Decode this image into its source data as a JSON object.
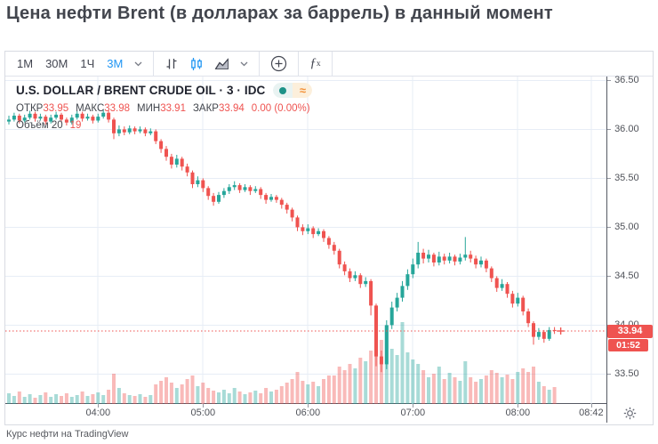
{
  "page": {
    "title": "Цена нефти Brent (в долларах за баррель) в данный момент",
    "caption": "Курс нефти на TradingView"
  },
  "colors": {
    "accent_blue": "#2196f3",
    "up": "#26a69a",
    "down": "#ef5350",
    "volume_up": "rgba(38,166,154,0.40)",
    "volume_down": "rgba(239,83,80,0.40)",
    "grid": "#e7edf6",
    "price_line": "#ef5350",
    "badge_bg": "#ef5350",
    "axis_text": "#4f5259",
    "icon_gray": "#434651"
  },
  "toolbar": {
    "intervals": [
      {
        "id": "1m",
        "label": "1М",
        "selected": false
      },
      {
        "id": "30m",
        "label": "30М",
        "selected": false
      },
      {
        "id": "1h",
        "label": "1Ч",
        "selected": false
      },
      {
        "id": "3m",
        "label": "3М",
        "selected": true
      }
    ]
  },
  "legend": {
    "symbol_title": "U.S. DOLLAR / BRENT CRUDE OIL · 3 · IDC",
    "ohlc": [
      {
        "label": "ОТКР",
        "value": "33.95"
      },
      {
        "label": "МАКС",
        "value": "33.98"
      },
      {
        "label": "МИН",
        "value": "33.91"
      },
      {
        "label": "ЗАКР",
        "value": "33.94"
      }
    ],
    "change": "0.00 (0.00%)",
    "volume_label": "Объём 20",
    "volume_value": "19"
  },
  "price_axis": {
    "labels": [
      "36.50",
      "36.00",
      "35.50",
      "35.00",
      "34.50",
      "34.00",
      "33.50"
    ],
    "current_price": "33.94",
    "countdown": "01:52"
  },
  "time_axis": {
    "labels": [
      "04:00",
      "05:00",
      "06:00",
      "07:00",
      "08:00",
      "08:42"
    ]
  },
  "chart_data": {
    "type": "candlestick",
    "symbol": "U.S. DOLLAR / BRENT CRUDE OIL",
    "exchange": "IDC",
    "interval_minutes": 3,
    "first_candle_time": "03:09",
    "last_candle_time": "08:21",
    "current_price": 33.94,
    "volume_ma_period": 20,
    "last_volume": 19,
    "grid": true,
    "ylim": [
      33.2,
      36.54
    ],
    "yticks": [
      33.5,
      34.0,
      34.5,
      35.0,
      35.5,
      36.0,
      36.5
    ],
    "xticks": [
      "04:00",
      "05:00",
      "06:00",
      "07:00",
      "08:00",
      "08:42"
    ],
    "ohlc_format": [
      "open",
      "high",
      "low",
      "close",
      "volume"
    ],
    "candles": [
      [
        36.08,
        36.14,
        36.05,
        36.1,
        12
      ],
      [
        36.1,
        36.17,
        36.08,
        36.14,
        9
      ],
      [
        36.14,
        36.16,
        36.06,
        36.09,
        14
      ],
      [
        36.09,
        36.15,
        36.07,
        36.12,
        8
      ],
      [
        36.12,
        36.19,
        36.1,
        36.16,
        11
      ],
      [
        36.16,
        36.18,
        36.08,
        36.11,
        7
      ],
      [
        36.11,
        36.16,
        36.09,
        36.13,
        10
      ],
      [
        36.13,
        36.15,
        36.05,
        36.08,
        13
      ],
      [
        36.08,
        36.15,
        36.06,
        36.12,
        8
      ],
      [
        36.12,
        36.18,
        36.1,
        36.15,
        11
      ],
      [
        36.15,
        36.17,
        36.07,
        36.1,
        9
      ],
      [
        36.1,
        36.12,
        36.04,
        36.07,
        12
      ],
      [
        36.07,
        36.15,
        36.05,
        36.12,
        8
      ],
      [
        36.12,
        36.19,
        36.1,
        36.16,
        10
      ],
      [
        36.16,
        36.18,
        36.08,
        36.11,
        14
      ],
      [
        36.11,
        36.16,
        36.09,
        36.13,
        9
      ],
      [
        36.13,
        36.15,
        36.06,
        36.09,
        11
      ],
      [
        36.09,
        36.16,
        36.07,
        36.13,
        13
      ],
      [
        36.13,
        36.2,
        36.11,
        36.17,
        10
      ],
      [
        36.17,
        36.19,
        36.07,
        36.1,
        16
      ],
      [
        36.1,
        36.12,
        35.9,
        35.96,
        34
      ],
      [
        35.96,
        36.04,
        35.93,
        36.0,
        18
      ],
      [
        36.0,
        36.03,
        35.94,
        35.97,
        12
      ],
      [
        35.97,
        36.04,
        35.95,
        36.01,
        10
      ],
      [
        36.01,
        36.03,
        35.95,
        35.98,
        9
      ],
      [
        35.98,
        36.03,
        35.96,
        36.0,
        11
      ],
      [
        36.0,
        36.02,
        35.93,
        35.96,
        8
      ],
      [
        35.96,
        36.01,
        35.94,
        35.98,
        10
      ],
      [
        35.98,
        36.0,
        35.85,
        35.88,
        22
      ],
      [
        35.88,
        35.9,
        35.76,
        35.8,
        26
      ],
      [
        35.8,
        35.83,
        35.68,
        35.72,
        30
      ],
      [
        35.72,
        35.75,
        35.6,
        35.64,
        24
      ],
      [
        35.64,
        35.74,
        35.61,
        35.7,
        18
      ],
      [
        35.7,
        35.72,
        35.58,
        35.62,
        22
      ],
      [
        35.62,
        35.65,
        35.52,
        35.56,
        28
      ],
      [
        35.56,
        35.58,
        35.4,
        35.44,
        32
      ],
      [
        35.44,
        35.52,
        35.41,
        35.48,
        20
      ],
      [
        35.48,
        35.5,
        35.36,
        35.4,
        24
      ],
      [
        35.4,
        35.42,
        35.28,
        35.32,
        18
      ],
      [
        35.32,
        35.35,
        35.22,
        35.26,
        15
      ],
      [
        35.26,
        35.36,
        35.24,
        35.33,
        13
      ],
      [
        35.33,
        35.4,
        35.3,
        35.37,
        16
      ],
      [
        35.37,
        35.44,
        35.34,
        35.41,
        12
      ],
      [
        35.41,
        35.47,
        35.38,
        35.43,
        18
      ],
      [
        35.43,
        35.45,
        35.35,
        35.38,
        14
      ],
      [
        35.38,
        35.44,
        35.36,
        35.41,
        11
      ],
      [
        35.41,
        35.43,
        35.33,
        35.37,
        13
      ],
      [
        35.37,
        35.42,
        35.35,
        35.39,
        15
      ],
      [
        35.39,
        35.41,
        35.29,
        35.33,
        12
      ],
      [
        35.33,
        35.35,
        35.24,
        35.28,
        18
      ],
      [
        35.28,
        35.34,
        35.26,
        35.31,
        14
      ],
      [
        35.31,
        35.33,
        35.25,
        35.28,
        16
      ],
      [
        35.28,
        35.3,
        35.19,
        35.23,
        20
      ],
      [
        35.23,
        35.25,
        35.14,
        35.18,
        24
      ],
      [
        35.18,
        35.2,
        35.06,
        35.1,
        28
      ],
      [
        35.1,
        35.12,
        34.96,
        35.0,
        36
      ],
      [
        35.0,
        35.03,
        34.92,
        34.96,
        26
      ],
      [
        34.96,
        35.03,
        34.93,
        34.99,
        22
      ],
      [
        34.99,
        35.01,
        34.89,
        34.93,
        25
      ],
      [
        34.93,
        34.99,
        34.91,
        34.96,
        20
      ],
      [
        34.96,
        34.98,
        34.85,
        34.89,
        28
      ],
      [
        34.89,
        34.91,
        34.78,
        34.82,
        32
      ],
      [
        34.82,
        34.85,
        34.72,
        34.76,
        32
      ],
      [
        34.76,
        34.78,
        34.58,
        34.62,
        42
      ],
      [
        34.62,
        34.65,
        34.51,
        34.55,
        38
      ],
      [
        34.55,
        34.58,
        34.44,
        34.48,
        45
      ],
      [
        34.48,
        34.55,
        34.45,
        34.51,
        40
      ],
      [
        34.51,
        34.53,
        34.38,
        34.42,
        52
      ],
      [
        34.42,
        34.49,
        34.39,
        34.45,
        48
      ],
      [
        34.45,
        34.47,
        34.1,
        34.2,
        60
      ],
      [
        34.2,
        34.22,
        33.58,
        33.68,
        95
      ],
      [
        33.68,
        33.74,
        33.52,
        33.6,
        72
      ],
      [
        33.6,
        34.05,
        33.55,
        34.0,
        88
      ],
      [
        34.0,
        34.24,
        33.96,
        34.18,
        62
      ],
      [
        34.18,
        34.33,
        34.14,
        34.28,
        55
      ],
      [
        34.28,
        34.45,
        34.24,
        34.4,
        92
      ],
      [
        34.4,
        34.57,
        34.36,
        34.52,
        58
      ],
      [
        34.52,
        34.68,
        34.48,
        34.62,
        50
      ],
      [
        34.62,
        34.85,
        34.58,
        34.74,
        45
      ],
      [
        34.74,
        34.78,
        34.63,
        34.68,
        38
      ],
      [
        34.68,
        34.77,
        34.64,
        34.72,
        30
      ],
      [
        34.72,
        34.74,
        34.6,
        34.64,
        34
      ],
      [
        34.64,
        34.75,
        34.61,
        34.7,
        42
      ],
      [
        34.7,
        34.73,
        34.62,
        34.66,
        28
      ],
      [
        34.66,
        34.74,
        34.63,
        34.7,
        35
      ],
      [
        34.7,
        34.72,
        34.61,
        34.65,
        30
      ],
      [
        34.65,
        34.73,
        34.62,
        34.69,
        26
      ],
      [
        34.69,
        34.9,
        34.66,
        34.72,
        48
      ],
      [
        34.72,
        34.76,
        34.64,
        34.68,
        30
      ],
      [
        34.68,
        34.71,
        34.58,
        34.62,
        25
      ],
      [
        34.62,
        34.7,
        34.59,
        34.66,
        28
      ],
      [
        34.66,
        34.68,
        34.54,
        34.58,
        32
      ],
      [
        34.58,
        34.6,
        34.44,
        34.48,
        38
      ],
      [
        34.48,
        34.5,
        34.34,
        34.38,
        35
      ],
      [
        34.38,
        34.47,
        34.35,
        34.42,
        30
      ],
      [
        34.42,
        34.44,
        34.28,
        34.32,
        33
      ],
      [
        34.32,
        34.35,
        34.18,
        34.22,
        28
      ],
      [
        34.22,
        34.33,
        34.19,
        34.28,
        36
      ],
      [
        34.28,
        34.3,
        34.1,
        34.14,
        40
      ],
      [
        34.14,
        34.17,
        33.98,
        34.02,
        36
      ],
      [
        34.02,
        34.04,
        33.8,
        33.88,
        42
      ],
      [
        33.88,
        33.97,
        33.85,
        33.93,
        25
      ],
      [
        33.93,
        33.95,
        33.82,
        33.86,
        20
      ],
      [
        33.86,
        33.98,
        33.84,
        33.95,
        16
      ],
      [
        33.95,
        33.98,
        33.91,
        33.94,
        19
      ]
    ]
  }
}
